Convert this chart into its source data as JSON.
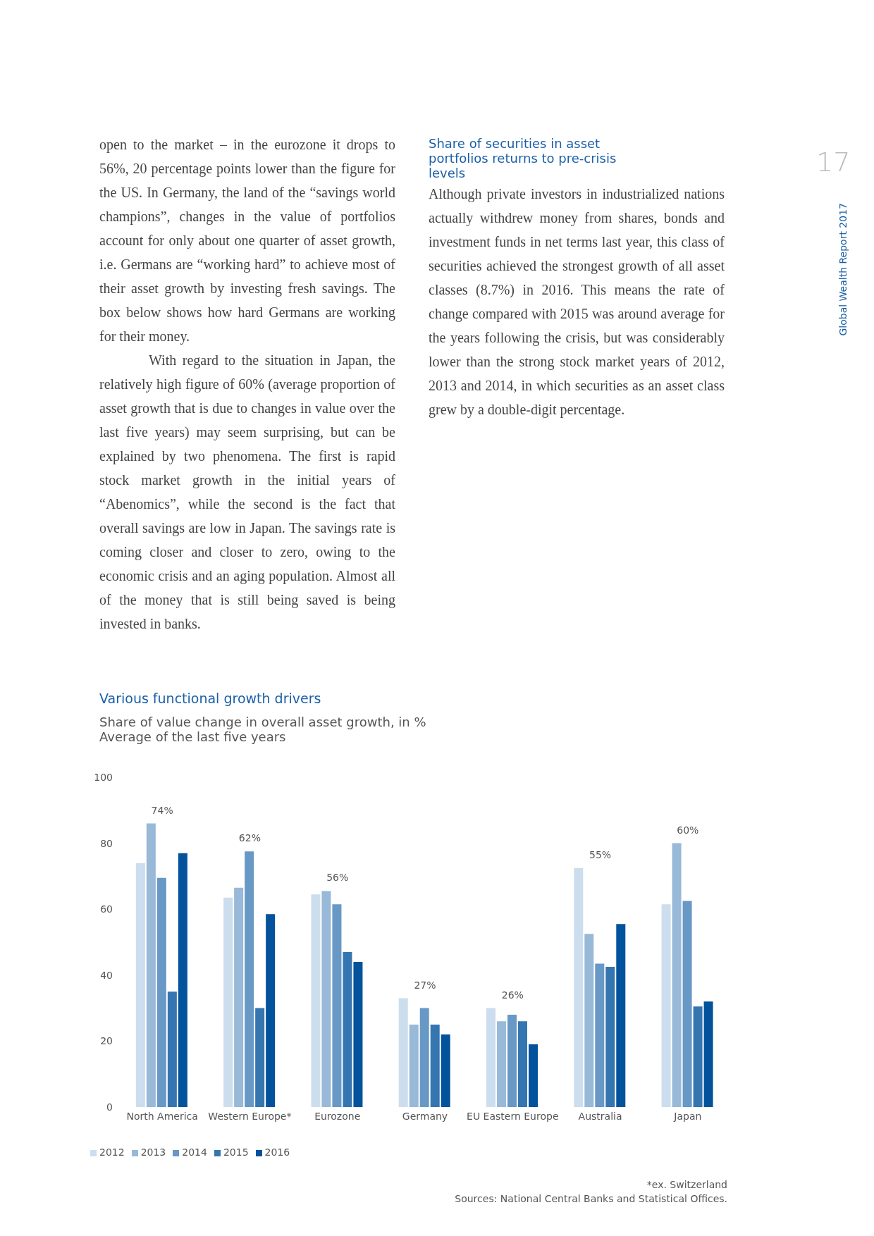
{
  "chart_data": {
    "type": "bar",
    "title": "Various functional growth drivers",
    "subtitle": "Share of value change in overall asset growth, in %\nAverage of the last five years",
    "categories": [
      "North America",
      "Western Europe*",
      "Eurozone",
      "Germany",
      "EU Eastern Europe",
      "Australia",
      "Japan"
    ],
    "series": [
      {
        "name": "2012",
        "color": "#ccdeed",
        "values": [
          74,
          63.5,
          64.5,
          33,
          30,
          72.5,
          61.5
        ]
      },
      {
        "name": "2013",
        "color": "#98b9d7",
        "values": [
          86,
          66.5,
          65.5,
          25,
          26,
          52.5,
          80
        ]
      },
      {
        "name": "2014",
        "color": "#6898c5",
        "values": [
          69.5,
          77.5,
          61.5,
          30,
          28,
          43.5,
          62.5
        ]
      },
      {
        "name": "2015",
        "color": "#3576b1",
        "values": [
          35,
          30,
          47,
          25,
          26,
          42.5,
          30.5
        ]
      },
      {
        "name": "2016",
        "color": "#02529c",
        "values": [
          77,
          58.5,
          44,
          22,
          19,
          55.5,
          32
        ]
      }
    ],
    "ylim": [
      0,
      100
    ],
    "yticks": [
      0,
      20,
      40,
      60,
      80,
      100
    ],
    "grid": false,
    "legend": "bottom left",
    "annotations": [
      "17",
      "Global Wealth Report 2017",
      "open to the market – in the eurozone it drops to 56%, 20 percentage points lower than the figure for the US. In Germany, the land of the “savings world champions”, changes in the value of portfolios account for only about one quarter of asset growth, i.e. Germans are “working hard” to achieve most of their asset growth by investing fresh savings. The box below shows how hard Germans are working for their money.",
      "With regard to the situation in Japan, the relatively high figure of 60% (average proportion of asset growth that is due to changes in value over the last five years) may seem surprising, but can be explained by two phenomena. The first is rapid stock market growth in the initial years of “Abenomics”, while the second is the fact that overall savings are low in Japan. The savings rate is coming closer and closer to zero, owing to the economic crisis and an aging population. Almost all of the money that is still being saved is being invested in banks.",
      "Share of securities in asset portfolios returns to pre-crisis levels",
      "Although private investors in industrialized nations actually withdrew money from shares, bonds and investment funds in net terms last year, this class of securities achieved the strongest growth of all asset classes (8.7%) in 2016. This means the rate of change compared with 2015 was around average for the years following the crisis, but was considerably lower than the strong stock market years of 2012, 2013 and 2014, in which securities as an asset class grew by a double-digit percentage.",
      "*ex. Switzerland",
      "Sources: National Central Banks and Statistical Offices.",
      "74%",
      "62%",
      "56%",
      "27%",
      "26%",
      "55%",
      "60%"
    ]
  }
}
